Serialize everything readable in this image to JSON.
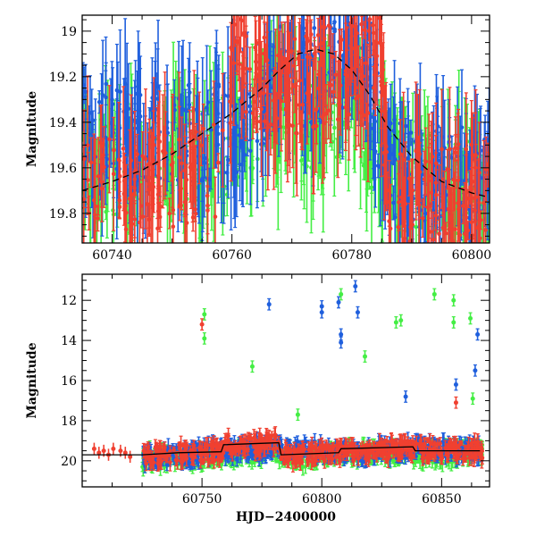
{
  "chart_data": [
    {
      "type": "scatter",
      "title": "",
      "xlabel": "",
      "ylabel": "Magnitude",
      "xlim": [
        60735,
        60803
      ],
      "ylim": [
        19.93,
        18.93
      ],
      "y_inverted": true,
      "x_ticks": [
        60740,
        60760,
        60780,
        60800
      ],
      "x_tick_labels": [
        "60740",
        "60760",
        "60780",
        "60800"
      ],
      "y_ticks": [
        19,
        19.2,
        19.4,
        19.6,
        19.8
      ],
      "y_tick_labels": [
        "19",
        "19.2",
        "19.4",
        "19.6",
        "19.8"
      ],
      "grid": false,
      "series_colors": {
        "red": "#f04030",
        "green": "#44ee44",
        "blue": "#1f5fdd"
      },
      "model_curve": {
        "style": "dashed",
        "color": "#000000",
        "x": [
          60735,
          60740,
          60745,
          60750,
          60755,
          60760,
          60765,
          60768,
          60771,
          60774,
          60777,
          60780,
          60783,
          60786,
          60790,
          60795,
          60800,
          60803
        ],
        "y": [
          19.7,
          19.66,
          19.61,
          19.54,
          19.45,
          19.36,
          19.25,
          19.17,
          19.1,
          19.08,
          19.1,
          19.17,
          19.28,
          19.42,
          19.55,
          19.66,
          19.71,
          19.73
        ]
      },
      "data_envelope": {
        "x_range": [
          60735,
          60803
        ],
        "red": {
          "x": [
            60735,
            60759,
            60760,
            60768,
            60775,
            60785,
            60786,
            60803
          ],
          "y": [
            19.68,
            19.62,
            19.1,
            19.25,
            19.2,
            19.15,
            19.7,
            19.72
          ]
        },
        "green": {
          "x": [
            60735,
            60760,
            60768,
            60775,
            60780,
            60786,
            60803
          ],
          "y": [
            19.65,
            19.5,
            19.35,
            19.45,
            19.3,
            19.65,
            19.7
          ]
        },
        "blue": {
          "x": [
            60735,
            60760,
            60768,
            60776,
            60782,
            60786,
            60803
          ],
          "y": [
            19.45,
            19.45,
            19.2,
            19.2,
            19.05,
            19.6,
            19.65
          ]
        }
      }
    },
    {
      "type": "scatter",
      "title": "",
      "xlabel": "HJD−2400000",
      "ylabel": "Magnitude",
      "xlim": [
        60700,
        60870
      ],
      "ylim": [
        21.3,
        10.7
      ],
      "y_inverted": true,
      "x_ticks": [
        60750,
        60800,
        60850
      ],
      "x_tick_labels": [
        "60750",
        "60800",
        "60850"
      ],
      "y_ticks": [
        12,
        14,
        16,
        18,
        20
      ],
      "y_tick_labels": [
        "12",
        "14",
        "16",
        "18",
        "20"
      ],
      "grid": false,
      "series_colors": {
        "red": "#f04030",
        "green": "#44ee44",
        "blue": "#1f5fdd"
      },
      "model_curve": {
        "style": "solid",
        "color": "#000000",
        "x": [
          60700,
          60725,
          60740,
          60758,
          60759,
          60782,
          60783,
          60807,
          60808,
          60838,
          60839,
          60866
        ],
        "y": [
          19.7,
          19.7,
          19.6,
          19.55,
          19.2,
          19.1,
          19.7,
          19.6,
          19.4,
          19.3,
          19.5,
          19.5
        ]
      },
      "quiescent_points": {
        "red": {
          "x": [
            60705,
            60707,
            60709,
            60711,
            60713,
            60716,
            60718,
            60720
          ],
          "y": [
            19.4,
            19.6,
            19.5,
            19.7,
            19.4,
            19.5,
            19.6,
            19.8
          ]
        }
      },
      "outliers": {
        "red": [
          [
            60750,
            13.2
          ],
          [
            60856,
            17.1
          ]
        ],
        "green": [
          [
            60751,
            12.7
          ],
          [
            60751,
            13.9
          ],
          [
            60771,
            15.3
          ],
          [
            60790,
            17.7
          ],
          [
            60808,
            11.7
          ],
          [
            60818,
            14.8
          ],
          [
            60831,
            13.1
          ],
          [
            60833,
            13.0
          ],
          [
            60847,
            11.7
          ],
          [
            60855,
            12.0
          ],
          [
            60855,
            13.1
          ],
          [
            60862,
            12.9
          ],
          [
            60863,
            16.9
          ]
        ],
        "blue": [
          [
            60778,
            12.2
          ],
          [
            60800,
            12.3
          ],
          [
            60800,
            12.6
          ],
          [
            60807,
            12.1
          ],
          [
            60808,
            13.7
          ],
          [
            60808,
            14.1
          ],
          [
            60814,
            11.3
          ],
          [
            60815,
            12.6
          ],
          [
            60835,
            16.8
          ],
          [
            60856,
            16.2
          ],
          [
            60864,
            15.5
          ],
          [
            60865,
            13.7
          ]
        ]
      },
      "data_envelope": {
        "x_range": [
          60725,
          60867
        ],
        "red": {
          "x": [
            60725,
            60758,
            60759,
            60782,
            60783,
            60808,
            60838,
            60866
          ],
          "y": [
            19.7,
            19.6,
            19.2,
            19.1,
            19.75,
            19.6,
            19.4,
            19.5
          ]
        },
        "green": {
          "x": [
            60725,
            60758,
            60782,
            60790,
            60810,
            60840,
            60866
          ],
          "y": [
            19.9,
            19.8,
            19.6,
            19.9,
            19.6,
            19.7,
            19.6
          ]
        },
        "blue": {
          "x": [
            60725,
            60758,
            60782,
            60800,
            60810,
            60840,
            60866
          ],
          "y": [
            19.9,
            19.5,
            19.4,
            19.5,
            19.6,
            19.4,
            19.5
          ]
        }
      }
    }
  ]
}
